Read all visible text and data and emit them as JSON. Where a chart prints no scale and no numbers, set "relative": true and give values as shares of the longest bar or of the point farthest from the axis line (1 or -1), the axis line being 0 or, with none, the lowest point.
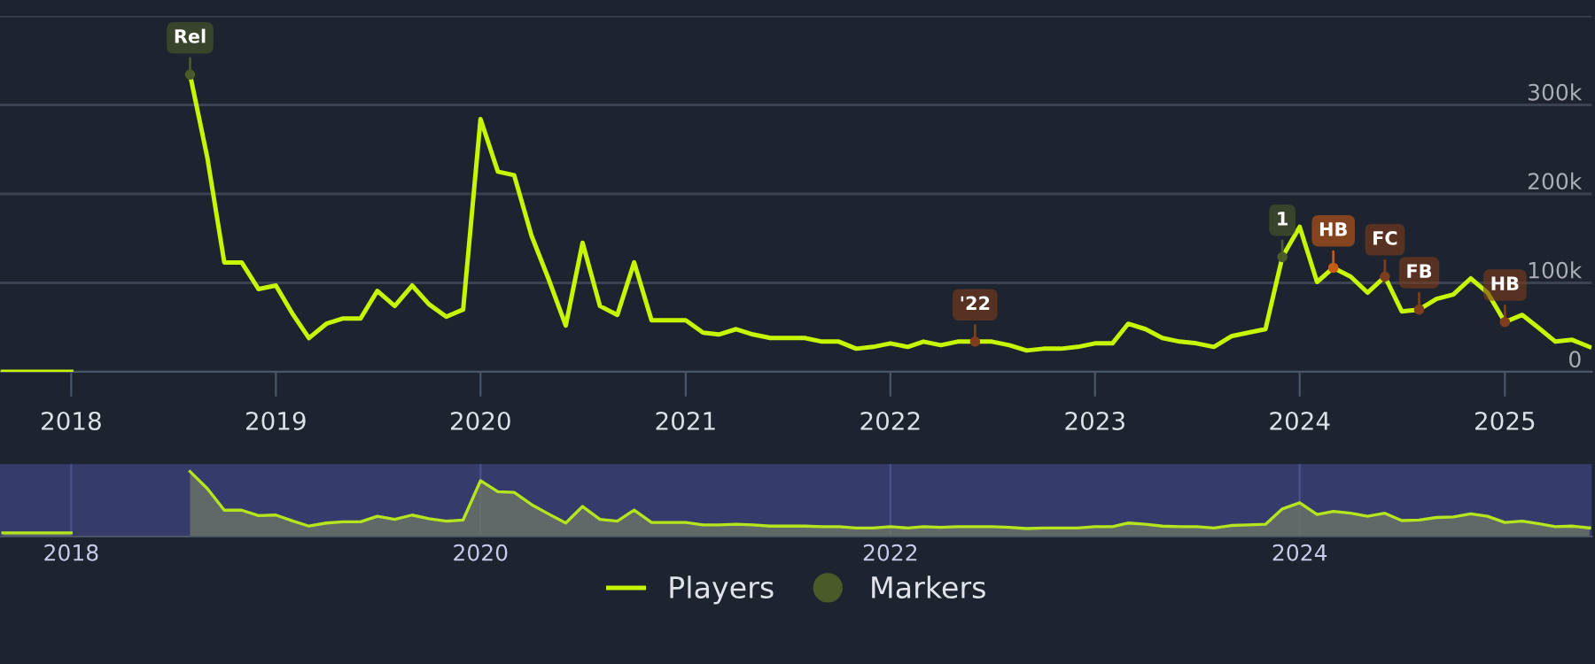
{
  "chart_data": [
    {
      "type": "line",
      "ylim": [
        0,
        400000
      ],
      "yticks": [
        0,
        {
          "value": 100000,
          "label": "100k"
        },
        {
          "value": 200000,
          "label": "200k"
        },
        {
          "value": 300000,
          "label": "300k"
        },
        {
          "value": 400000,
          "label": null
        }
      ],
      "xlim": [
        "2017-08-27",
        "2025-06-05"
      ],
      "xticks": [
        "2018",
        "2019",
        "2020",
        "2021",
        "2022",
        "2023",
        "2024",
        "2025"
      ],
      "grid": "y",
      "legend": "bottom",
      "series": [
        {
          "name": "Players",
          "color": "#c8f500",
          "type": "line",
          "x": [
            "2017-09",
            "2017-10",
            "2017-11",
            "2017-12",
            "2018-01",
            "2018-02",
            "2018-08",
            "2018-09",
            "2018-10",
            "2018-11",
            "2018-12",
            "2019-01",
            "2019-02",
            "2019-03",
            "2019-04",
            "2019-05",
            "2019-06",
            "2019-07",
            "2019-08",
            "2019-09",
            "2019-10",
            "2019-11",
            "2019-12",
            "2020-01",
            "2020-02",
            "2020-03",
            "2020-04",
            "2020-05",
            "2020-06",
            "2020-07",
            "2020-08",
            "2020-09",
            "2020-10",
            "2020-11",
            "2020-12",
            "2021-01",
            "2021-02",
            "2021-03",
            "2021-04",
            "2021-05",
            "2021-06",
            "2021-07",
            "2021-08",
            "2021-09",
            "2021-10",
            "2021-11",
            "2021-12",
            "2022-01",
            "2022-02",
            "2022-03",
            "2022-04",
            "2022-05",
            "2022-06",
            "2022-07",
            "2022-08",
            "2022-09",
            "2022-10",
            "2022-11",
            "2022-12",
            "2023-01",
            "2023-02",
            "2023-03",
            "2023-04",
            "2023-05",
            "2023-06",
            "2023-07",
            "2023-08",
            "2023-09",
            "2023-10",
            "2023-11",
            "2023-12",
            "2024-01",
            "2024-02",
            "2024-03",
            "2024-04",
            "2024-05",
            "2024-06",
            "2024-07",
            "2024-08",
            "2024-09",
            "2024-10",
            "2024-11",
            "2024-12",
            "2025-01",
            "2025-02",
            "2025-03",
            "2025-04",
            "2025-05",
            "2025-06"
          ],
          "values": [
            0,
            0,
            0,
            0,
            0,
            null,
            334000,
            240000,
            123000,
            123000,
            93000,
            97000,
            64000,
            38000,
            54000,
            60000,
            60000,
            91000,
            74000,
            97000,
            76000,
            62000,
            70000,
            284000,
            225000,
            221000,
            153000,
            105000,
            52000,
            145000,
            74000,
            64000,
            123000,
            58000,
            58000,
            58000,
            44000,
            42000,
            48000,
            42000,
            38000,
            38000,
            38000,
            34000,
            34000,
            26000,
            28000,
            32000,
            28000,
            34000,
            30000,
            34000,
            34000,
            34000,
            30000,
            24000,
            26000,
            26000,
            28000,
            32000,
            32000,
            54000,
            48000,
            38000,
            34000,
            32000,
            28000,
            40000,
            44000,
            48000,
            129000,
            163000,
            101000,
            117000,
            107000,
            89000,
            107000,
            68000,
            70000,
            82000,
            87000,
            105000,
            89000,
            56000,
            64000,
            50000,
            34000,
            36000,
            28000
          ]
        },
        {
          "name": "Markers",
          "color": "#4a5a28",
          "type": "scatter",
          "x": [
            "2018-08",
            "2022-06",
            "2023-12",
            "2024-03",
            "2024-06",
            "2024-08",
            "2025-01"
          ],
          "values": [
            334000,
            34000,
            129000,
            117000,
            107000,
            70000,
            56000
          ],
          "colors": [
            "#4a5a28",
            "#7e3d1c",
            "#4a5a28",
            "#c85a14",
            "#7e3d1c",
            "#7e3d1c",
            "#7e3d1c"
          ]
        }
      ],
      "annotations": [
        {
          "text": "Rel",
          "x": "2018-08",
          "y": 334000
        },
        {
          "text": "'22",
          "x": "2022-06",
          "y": 34000
        },
        {
          "text": "1",
          "x": "2023-12",
          "y": 129000
        },
        {
          "text": "HB",
          "x": "2024-03",
          "y": 117000
        },
        {
          "text": "FC",
          "x": "2024-06",
          "y": 107000
        },
        {
          "text": "FB",
          "x": "2024-08",
          "y": 70000
        },
        {
          "text": "HB",
          "x": "2025-01",
          "y": 56000
        }
      ]
    },
    {
      "type": "area",
      "relative": true,
      "xlim": [
        "2017-08-27",
        "2025-06-05"
      ],
      "xticks": [
        "2018",
        "2020",
        "2022",
        "2024"
      ],
      "grid": "x",
      "series": [
        {
          "color": "#b5e61d",
          "x": [
            "2017-09",
            "2017-10",
            "2017-11",
            "2017-12",
            "2018-01",
            "2018-02",
            "2018-08",
            "2018-09",
            "2018-10",
            "2018-11",
            "2018-12",
            "2019-01",
            "2019-02",
            "2019-03",
            "2019-04",
            "2019-05",
            "2019-06",
            "2019-07",
            "2019-08",
            "2019-09",
            "2019-10",
            "2019-11",
            "2019-12",
            "2020-01",
            "2020-02",
            "2020-03",
            "2020-04",
            "2020-05",
            "2020-06",
            "2020-07",
            "2020-08",
            "2020-09",
            "2020-10",
            "2020-11",
            "2020-12",
            "2021-01",
            "2021-02",
            "2021-03",
            "2021-04",
            "2021-05",
            "2021-06",
            "2021-07",
            "2021-08",
            "2021-09",
            "2021-10",
            "2021-11",
            "2021-12",
            "2022-01",
            "2022-02",
            "2022-03",
            "2022-04",
            "2022-05",
            "2022-06",
            "2022-07",
            "2022-08",
            "2022-09",
            "2022-10",
            "2022-11",
            "2022-12",
            "2023-01",
            "2023-02",
            "2023-03",
            "2023-04",
            "2023-05",
            "2023-06",
            "2023-07",
            "2023-08",
            "2023-09",
            "2023-10",
            "2023-11",
            "2023-12",
            "2024-01",
            "2024-02",
            "2024-03",
            "2024-04",
            "2024-05",
            "2024-06",
            "2024-07",
            "2024-08",
            "2024-09",
            "2024-10",
            "2024-11",
            "2024-12",
            "2025-01",
            "2025-02",
            "2025-03",
            "2025-04",
            "2025-05",
            "2025-06"
          ],
          "values": [
            0,
            0,
            0,
            0,
            0,
            null,
            1,
            0.72,
            0.37,
            0.37,
            0.28,
            0.29,
            0.19,
            0.11,
            0.16,
            0.18,
            0.18,
            0.27,
            0.22,
            0.29,
            0.23,
            0.19,
            0.21,
            0.85,
            0.67,
            0.66,
            0.46,
            0.31,
            0.16,
            0.43,
            0.22,
            0.19,
            0.37,
            0.17,
            0.17,
            0.17,
            0.13,
            0.13,
            0.14,
            0.13,
            0.11,
            0.11,
            0.11,
            0.1,
            0.1,
            0.08,
            0.08,
            0.1,
            0.08,
            0.1,
            0.09,
            0.1,
            0.1,
            0.1,
            0.09,
            0.07,
            0.08,
            0.08,
            0.08,
            0.1,
            0.1,
            0.16,
            0.14,
            0.11,
            0.1,
            0.1,
            0.08,
            0.12,
            0.13,
            0.14,
            0.39,
            0.49,
            0.3,
            0.35,
            0.32,
            0.27,
            0.32,
            0.2,
            0.21,
            0.25,
            0.26,
            0.31,
            0.27,
            0.17,
            0.19,
            0.15,
            0.1,
            0.11,
            0.08
          ]
        }
      ]
    }
  ]
}
